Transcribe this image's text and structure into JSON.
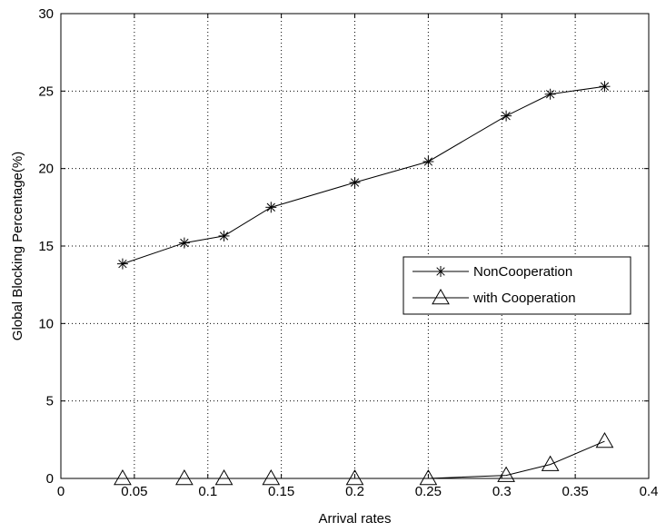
{
  "chart_data": {
    "type": "line",
    "title": "",
    "xlabel": "Arrival rates",
    "ylabel": "Global Blocking Percentage(%)",
    "xlim": [
      0,
      0.4
    ],
    "ylim": [
      0,
      30
    ],
    "grid": true,
    "legend_position": "right",
    "x_ticks": [
      "0",
      "0.05",
      "0.1",
      "0.15",
      "0.2",
      "0.25",
      "0.3",
      "0.35",
      "0.4"
    ],
    "y_ticks": [
      "0",
      "5",
      "10",
      "15",
      "20",
      "25",
      "30"
    ],
    "series": [
      {
        "name": "NonCooperation",
        "marker": "asterisk",
        "color": "#000000",
        "x": [
          0.042,
          0.084,
          0.111,
          0.143,
          0.2,
          0.25,
          0.303,
          0.333,
          0.37
        ],
        "y": [
          13.85,
          15.2,
          15.65,
          17.5,
          19.1,
          20.45,
          23.4,
          24.8,
          25.3
        ]
      },
      {
        "name": "with Cooperation",
        "marker": "triangle",
        "color": "#000000",
        "x": [
          0.042,
          0.084,
          0.111,
          0.143,
          0.2,
          0.25,
          0.303,
          0.333,
          0.37
        ],
        "y": [
          0.0,
          0.0,
          0.0,
          0.0,
          0.0,
          0.0,
          0.2,
          0.9,
          2.4
        ]
      }
    ]
  }
}
